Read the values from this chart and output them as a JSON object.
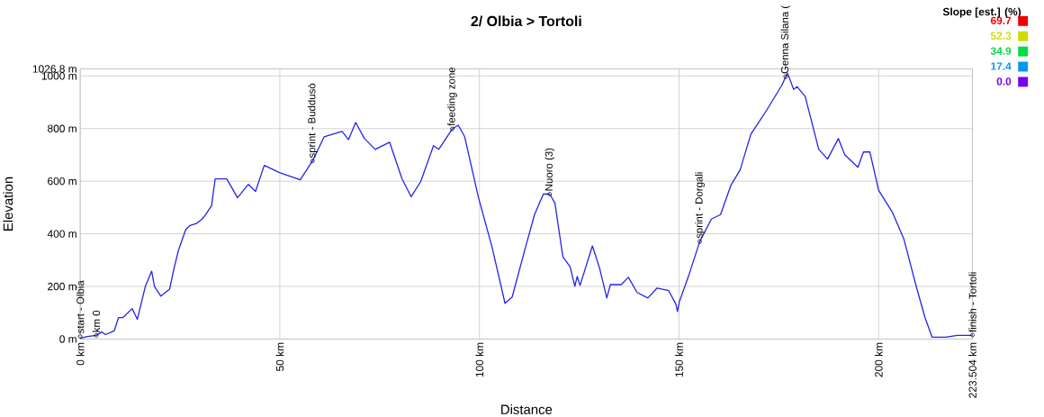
{
  "chart_data": {
    "type": "line",
    "title": "2/ Olbia > Tortoli",
    "xlabel": "Distance",
    "ylabel": "Elevation",
    "clabel": "Slope [est.] (%)",
    "clim": [
      0,
      69.7
    ],
    "cticks": [
      {
        "value": 0,
        "label": "0.0"
      },
      17.4,
      34.9,
      52.3,
      69.7
    ],
    "x": [
      0,
      1.8,
      4,
      5.4,
      6.3,
      8.5,
      9.6,
      10.7,
      13,
      14.3,
      16.3,
      17.9,
      18.6,
      20.2,
      22.4,
      23.5,
      24.6,
      26.4,
      27.5,
      29.1,
      30.5,
      31.4,
      32.9,
      33.8,
      36.7,
      39.4,
      42.1,
      43.9,
      46.1,
      49.9,
      55.1,
      58.2,
      61.1,
      65.6,
      67.2,
      69,
      71.2,
      73.9,
      77.5,
      80.6,
      82.9,
      85.3,
      88.5,
      89.8,
      93.2,
      94.7,
      96.3,
      99.7,
      103.2,
      106.4,
      108.2,
      111.5,
      113.8,
      116,
      117.6,
      118.9,
      120.9,
      122.7,
      123.9,
      124.5,
      125.2,
      128.3,
      130.1,
      131.9,
      132.8,
      135.5,
      137.3,
      139.5,
      142.2,
      144.5,
      147.4,
      149.2,
      149.6,
      150.1,
      152.5,
      155.2,
      158.1,
      160.4,
      163,
      165.3,
      168,
      169.8,
      172,
      175.8,
      176.7,
      177.2,
      178.7,
      179.6,
      181.6,
      185,
      187.2,
      189.9,
      191.5,
      194.8,
      196.2,
      197.8,
      200,
      203.4,
      206.3,
      209.4,
      211.6,
      213.4,
      216.8,
      219.7,
      223.1,
      223.504
    ],
    "values": [
      3,
      10,
      14,
      27,
      17,
      31,
      82,
      82,
      116,
      75,
      200,
      258,
      200,
      163,
      190,
      269,
      337,
      415,
      432,
      439,
      456,
      473,
      507,
      609,
      609,
      537,
      588,
      561,
      660,
      633,
      605,
      677,
      769,
      789,
      758,
      823,
      762,
      721,
      748,
      609,
      541,
      599,
      735,
      721,
      799,
      813,
      769,
      541,
      347,
      136,
      160,
      347,
      473,
      551,
      551,
      517,
      313,
      275,
      201,
      238,
      204,
      354,
      269,
      156,
      207,
      207,
      235,
      177,
      156,
      194,
      184,
      133,
      105,
      143,
      245,
      371,
      456,
      473,
      585,
      643,
      779,
      820,
      871,
      966,
      997,
      1010,
      949,
      959,
      922,
      721,
      684,
      762,
      701,
      653,
      711,
      711,
      565,
      483,
      381,
      201,
      82,
      7,
      7,
      14,
      14,
      15
    ],
    "color": "#2424e6",
    "xlim": [
      0,
      223.504
    ],
    "ylim": [
      0,
      1026.8
    ],
    "xticks": [
      {
        "value": 0,
        "label": "0 km"
      },
      {
        "value": 50,
        "label": "50 km"
      },
      {
        "value": 100,
        "label": "100 km"
      },
      {
        "value": 150,
        "label": "150 km"
      },
      {
        "value": 200,
        "label": "200 km"
      },
      {
        "value": 223.504,
        "label": "223.504 km"
      }
    ],
    "yticks": [
      {
        "value": 0,
        "label": "0 m"
      },
      {
        "value": 200,
        "label": "200 m"
      },
      {
        "value": 400,
        "label": "400 m"
      },
      {
        "value": 600,
        "label": "600 m"
      },
      {
        "value": 800,
        "label": "800 m"
      },
      {
        "value": 1000,
        "label": "1000 m"
      },
      {
        "value": 1026.8,
        "label": "1026.8 m"
      }
    ],
    "grid": true,
    "annotations": [
      {
        "text": "start - Olbia",
        "x": 0,
        "y": 10
      },
      {
        "text": "km 0",
        "x": 4,
        "y": 14
      },
      {
        "text": "sprint - Buddusò",
        "x": 58.2,
        "y": 677
      },
      {
        "text": "feeding zone",
        "x": 93.2,
        "y": 799
      },
      {
        "text": "Nuoro (3)",
        "x": 117.6,
        "y": 551
      },
      {
        "text": "sprint - Dorgali",
        "x": 155.2,
        "y": 371
      },
      {
        "text": "Genna Silana (",
        "x": 176.7,
        "y": 997
      },
      {
        "text": "finish - Tortoli",
        "x": 223.504,
        "y": 15
      }
    ]
  }
}
